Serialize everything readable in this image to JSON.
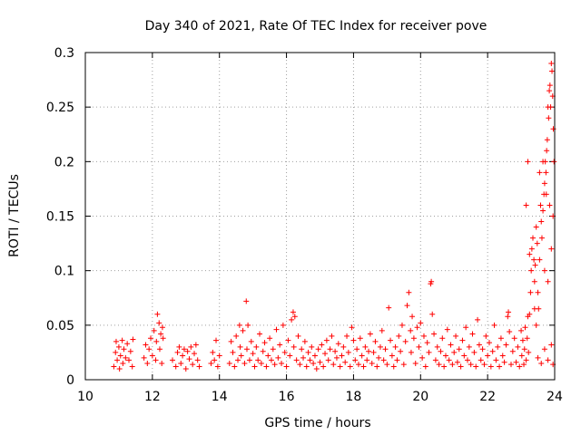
{
  "chart_data": {
    "type": "scatter",
    "title": "Day 340 of 2021, Rate Of TEC Index for receiver pove",
    "xlabel": "GPS time / hours",
    "ylabel": "ROTI / TECUs",
    "xlim": [
      10,
      24
    ],
    "ylim": [
      0,
      0.3
    ],
    "xticks": [
      "10",
      "12",
      "14",
      "16",
      "18",
      "20",
      "22",
      "24"
    ],
    "yticks": [
      "0",
      "0.05",
      "0.1",
      "0.15",
      "0.2",
      "0.25",
      "0.3"
    ],
    "grid": true,
    "marker": "+",
    "color": "#ff0000",
    "series": [
      {
        "points": [
          [
            10.85,
            0.012
          ],
          [
            10.9,
            0.025
          ],
          [
            10.92,
            0.035
          ],
          [
            10.95,
            0.018
          ],
          [
            11.0,
            0.03
          ],
          [
            11.02,
            0.01
          ],
          [
            11.05,
            0.022
          ],
          [
            11.1,
            0.036
          ],
          [
            11.12,
            0.015
          ],
          [
            11.15,
            0.028
          ],
          [
            11.2,
            0.02
          ],
          [
            11.25,
            0.033
          ],
          [
            11.3,
            0.018
          ],
          [
            11.35,
            0.026
          ],
          [
            11.4,
            0.012
          ],
          [
            11.42,
            0.037
          ],
          [
            11.75,
            0.02
          ],
          [
            11.8,
            0.032
          ],
          [
            11.85,
            0.015
          ],
          [
            11.9,
            0.028
          ],
          [
            11.95,
            0.038
          ],
          [
            12.0,
            0.022
          ],
          [
            12.05,
            0.045
          ],
          [
            12.1,
            0.018
          ],
          [
            12.12,
            0.035
          ],
          [
            12.15,
            0.06
          ],
          [
            12.2,
            0.052
          ],
          [
            12.22,
            0.028
          ],
          [
            12.25,
            0.042
          ],
          [
            12.28,
            0.015
          ],
          [
            12.3,
            0.048
          ],
          [
            12.32,
            0.038
          ],
          [
            12.6,
            0.018
          ],
          [
            12.7,
            0.012
          ],
          [
            12.75,
            0.025
          ],
          [
            12.8,
            0.03
          ],
          [
            12.85,
            0.015
          ],
          [
            12.9,
            0.022
          ],
          [
            12.95,
            0.028
          ],
          [
            13.0,
            0.01
          ],
          [
            13.05,
            0.026
          ],
          [
            13.1,
            0.019
          ],
          [
            13.15,
            0.03
          ],
          [
            13.2,
            0.014
          ],
          [
            13.25,
            0.024
          ],
          [
            13.3,
            0.032
          ],
          [
            13.35,
            0.018
          ],
          [
            13.4,
            0.012
          ],
          [
            13.75,
            0.015
          ],
          [
            13.8,
            0.025
          ],
          [
            13.85,
            0.018
          ],
          [
            13.9,
            0.036
          ],
          [
            13.95,
            0.012
          ],
          [
            14.0,
            0.022
          ],
          [
            14.3,
            0.015
          ],
          [
            14.35,
            0.035
          ],
          [
            14.4,
            0.025
          ],
          [
            14.45,
            0.012
          ],
          [
            14.5,
            0.04
          ],
          [
            14.55,
            0.018
          ],
          [
            14.6,
            0.05
          ],
          [
            14.62,
            0.03
          ],
          [
            14.65,
            0.022
          ],
          [
            14.7,
            0.045
          ],
          [
            14.75,
            0.015
          ],
          [
            14.8,
            0.072
          ],
          [
            14.82,
            0.028
          ],
          [
            14.85,
            0.05
          ],
          [
            14.9,
            0.018
          ],
          [
            14.95,
            0.035
          ],
          [
            15.0,
            0.024
          ],
          [
            15.05,
            0.012
          ],
          [
            15.1,
            0.03
          ],
          [
            15.15,
            0.018
          ],
          [
            15.2,
            0.042
          ],
          [
            15.25,
            0.015
          ],
          [
            15.3,
            0.026
          ],
          [
            15.35,
            0.034
          ],
          [
            15.4,
            0.012
          ],
          [
            15.45,
            0.022
          ],
          [
            15.5,
            0.038
          ],
          [
            15.55,
            0.018
          ],
          [
            15.6,
            0.028
          ],
          [
            15.65,
            0.014
          ],
          [
            15.7,
            0.046
          ],
          [
            15.75,
            0.02
          ],
          [
            15.8,
            0.032
          ],
          [
            15.85,
            0.015
          ],
          [
            15.9,
            0.05
          ],
          [
            15.95,
            0.025
          ],
          [
            16.0,
            0.012
          ],
          [
            16.05,
            0.036
          ],
          [
            16.1,
            0.022
          ],
          [
            16.15,
            0.055
          ],
          [
            16.2,
            0.062
          ],
          [
            16.22,
            0.03
          ],
          [
            16.25,
            0.058
          ],
          [
            16.3,
            0.018
          ],
          [
            16.35,
            0.04
          ],
          [
            16.4,
            0.014
          ],
          [
            16.45,
            0.028
          ],
          [
            16.5,
            0.02
          ],
          [
            16.55,
            0.035
          ],
          [
            16.6,
            0.012
          ],
          [
            16.65,
            0.025
          ],
          [
            16.7,
            0.018
          ],
          [
            16.75,
            0.03
          ],
          [
            16.8,
            0.015
          ],
          [
            16.85,
            0.022
          ],
          [
            16.9,
            0.01
          ],
          [
            16.95,
            0.028
          ],
          [
            17.0,
            0.016
          ],
          [
            17.05,
            0.032
          ],
          [
            17.1,
            0.012
          ],
          [
            17.15,
            0.024
          ],
          [
            17.2,
            0.036
          ],
          [
            17.25,
            0.018
          ],
          [
            17.3,
            0.028
          ],
          [
            17.35,
            0.04
          ],
          [
            17.4,
            0.014
          ],
          [
            17.45,
            0.026
          ],
          [
            17.5,
            0.02
          ],
          [
            17.55,
            0.033
          ],
          [
            17.6,
            0.012
          ],
          [
            17.65,
            0.022
          ],
          [
            17.7,
            0.03
          ],
          [
            17.75,
            0.016
          ],
          [
            17.8,
            0.04
          ],
          [
            17.85,
            0.025
          ],
          [
            17.9,
            0.012
          ],
          [
            17.95,
            0.048
          ],
          [
            18.0,
            0.036
          ],
          [
            18.05,
            0.018
          ],
          [
            18.1,
            0.028
          ],
          [
            18.15,
            0.014
          ],
          [
            18.2,
            0.038
          ],
          [
            18.25,
            0.022
          ],
          [
            18.3,
            0.012
          ],
          [
            18.35,
            0.03
          ],
          [
            18.4,
            0.018
          ],
          [
            18.45,
            0.026
          ],
          [
            18.5,
            0.042
          ],
          [
            18.55,
            0.015
          ],
          [
            18.6,
            0.025
          ],
          [
            18.65,
            0.035
          ],
          [
            18.7,
            0.012
          ],
          [
            18.75,
            0.02
          ],
          [
            18.8,
            0.03
          ],
          [
            18.85,
            0.045
          ],
          [
            18.9,
            0.018
          ],
          [
            18.95,
            0.028
          ],
          [
            19.0,
            0.014
          ],
          [
            19.05,
            0.066
          ],
          [
            19.1,
            0.036
          ],
          [
            19.15,
            0.022
          ],
          [
            19.2,
            0.012
          ],
          [
            19.25,
            0.03
          ],
          [
            19.3,
            0.018
          ],
          [
            19.35,
            0.04
          ],
          [
            19.4,
            0.026
          ],
          [
            19.45,
            0.05
          ],
          [
            19.5,
            0.014
          ],
          [
            19.55,
            0.035
          ],
          [
            19.6,
            0.068
          ],
          [
            19.65,
            0.08
          ],
          [
            19.7,
            0.045
          ],
          [
            19.72,
            0.025
          ],
          [
            19.75,
            0.058
          ],
          [
            19.8,
            0.038
          ],
          [
            19.85,
            0.015
          ],
          [
            19.9,
            0.048
          ],
          [
            19.95,
            0.03
          ],
          [
            20.0,
            0.052
          ],
          [
            20.05,
            0.02
          ],
          [
            20.1,
            0.04
          ],
          [
            20.15,
            0.012
          ],
          [
            20.2,
            0.034
          ],
          [
            20.25,
            0.025
          ],
          [
            20.3,
            0.088
          ],
          [
            20.32,
            0.09
          ],
          [
            20.35,
            0.06
          ],
          [
            20.4,
            0.042
          ],
          [
            20.45,
            0.018
          ],
          [
            20.5,
            0.03
          ],
          [
            20.55,
            0.014
          ],
          [
            20.6,
            0.026
          ],
          [
            20.65,
            0.038
          ],
          [
            20.7,
            0.012
          ],
          [
            20.75,
            0.022
          ],
          [
            20.8,
            0.046
          ],
          [
            20.85,
            0.018
          ],
          [
            20.9,
            0.032
          ],
          [
            20.95,
            0.014
          ],
          [
            21.0,
            0.025
          ],
          [
            21.05,
            0.04
          ],
          [
            21.1,
            0.016
          ],
          [
            21.15,
            0.028
          ],
          [
            21.2,
            0.012
          ],
          [
            21.25,
            0.036
          ],
          [
            21.3,
            0.022
          ],
          [
            21.35,
            0.048
          ],
          [
            21.4,
            0.018
          ],
          [
            21.45,
            0.03
          ],
          [
            21.5,
            0.014
          ],
          [
            21.55,
            0.042
          ],
          [
            21.6,
            0.025
          ],
          [
            21.65,
            0.012
          ],
          [
            21.7,
            0.055
          ],
          [
            21.75,
            0.032
          ],
          [
            21.8,
            0.018
          ],
          [
            21.85,
            0.028
          ],
          [
            21.9,
            0.014
          ],
          [
            21.95,
            0.04
          ],
          [
            22.0,
            0.022
          ],
          [
            22.05,
            0.034
          ],
          [
            22.1,
            0.012
          ],
          [
            22.15,
            0.026
          ],
          [
            22.2,
            0.05
          ],
          [
            22.25,
            0.018
          ],
          [
            22.3,
            0.03
          ],
          [
            22.35,
            0.012
          ],
          [
            22.4,
            0.038
          ],
          [
            22.45,
            0.022
          ],
          [
            22.5,
            0.016
          ],
          [
            22.55,
            0.032
          ],
          [
            22.6,
            0.058
          ],
          [
            22.62,
            0.062
          ],
          [
            22.65,
            0.044
          ],
          [
            22.7,
            0.014
          ],
          [
            22.75,
            0.026
          ],
          [
            22.8,
            0.038
          ],
          [
            22.85,
            0.016
          ],
          [
            22.9,
            0.03
          ],
          [
            22.95,
            0.012
          ],
          [
            23.0,
            0.045
          ],
          [
            23.02,
            0.022
          ],
          [
            23.05,
            0.036
          ],
          [
            23.08,
            0.014
          ],
          [
            23.1,
            0.028
          ],
          [
            23.12,
            0.048
          ],
          [
            23.15,
            0.018
          ],
          [
            23.18,
            0.038
          ],
          [
            23.2,
            0.058
          ],
          [
            23.22,
            0.025
          ],
          [
            23.25,
            0.06
          ],
          [
            23.28,
            0.08
          ],
          [
            23.3,
            0.1
          ],
          [
            23.32,
            0.12
          ],
          [
            23.35,
            0.13
          ],
          [
            23.38,
            0.11
          ],
          [
            23.4,
            0.09
          ],
          [
            23.42,
            0.105
          ],
          [
            23.45,
            0.14
          ],
          [
            23.48,
            0.125
          ],
          [
            23.5,
            0.08
          ],
          [
            23.52,
            0.065
          ],
          [
            23.55,
            0.11
          ],
          [
            23.58,
            0.16
          ],
          [
            23.6,
            0.145
          ],
          [
            23.62,
            0.13
          ],
          [
            23.65,
            0.155
          ],
          [
            23.68,
            0.17
          ],
          [
            23.7,
            0.18
          ],
          [
            23.72,
            0.2
          ],
          [
            23.74,
            0.19
          ],
          [
            23.76,
            0.21
          ],
          [
            23.78,
            0.22
          ],
          [
            23.8,
            0.25
          ],
          [
            23.82,
            0.24
          ],
          [
            23.84,
            0.265
          ],
          [
            23.86,
            0.27
          ],
          [
            23.88,
            0.25
          ],
          [
            23.9,
            0.29
          ],
          [
            23.92,
            0.283
          ],
          [
            23.94,
            0.26
          ],
          [
            23.96,
            0.23
          ],
          [
            23.98,
            0.2
          ],
          [
            23.5,
            0.02
          ],
          [
            23.6,
            0.015
          ],
          [
            23.7,
            0.028
          ],
          [
            23.8,
            0.018
          ],
          [
            23.9,
            0.032
          ],
          [
            23.95,
            0.014
          ],
          [
            23.55,
            0.19
          ],
          [
            23.65,
            0.2
          ],
          [
            23.75,
            0.17
          ],
          [
            23.85,
            0.16
          ],
          [
            23.95,
            0.15
          ],
          [
            23.15,
            0.16
          ],
          [
            23.2,
            0.2
          ],
          [
            23.25,
            0.115
          ],
          [
            23.4,
            0.065
          ],
          [
            23.45,
            0.05
          ],
          [
            23.7,
            0.1
          ],
          [
            23.8,
            0.09
          ],
          [
            23.9,
            0.12
          ]
        ]
      }
    ]
  }
}
